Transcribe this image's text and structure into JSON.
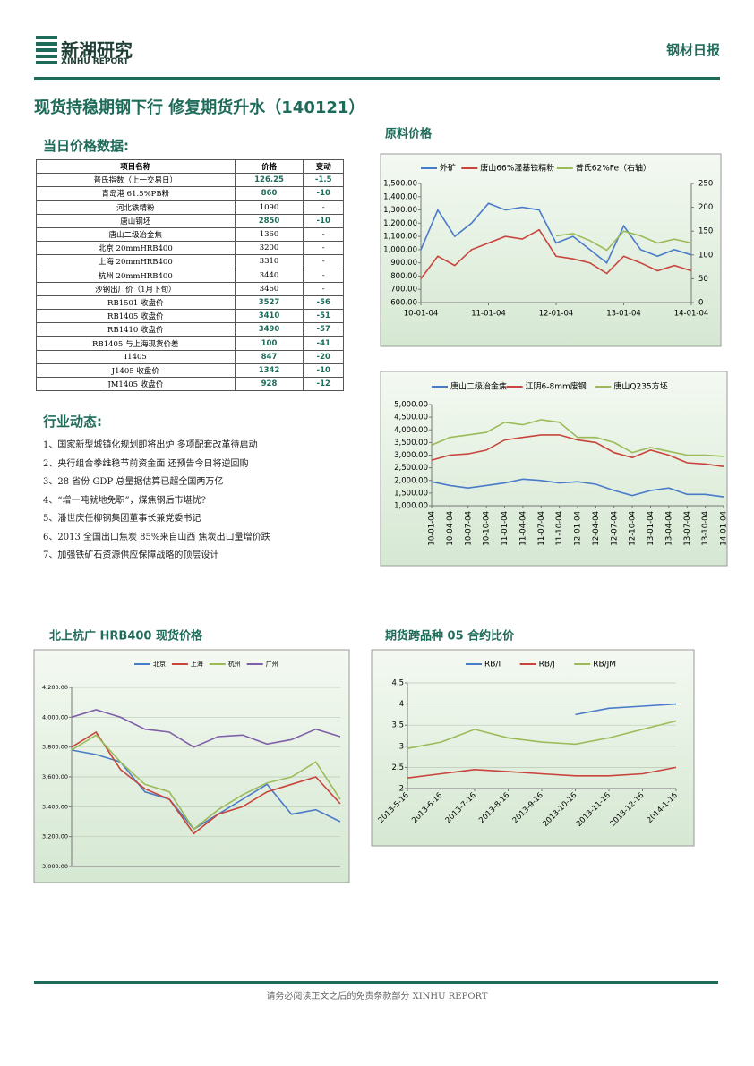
{
  "header": {
    "logo": "新湖研究",
    "logo_sub": "XINHU REPORT",
    "report_type": "钢材日报"
  },
  "title": "现货持稳期钢下行 修复期货升水（140121）",
  "price_section": "当日价格数据:",
  "table": {
    "header": [
      "项目名称",
      "价格",
      "变动"
    ],
    "rows": [
      [
        "普氏指数（上一交易日）",
        "126.25",
        "-1.5"
      ],
      [
        "青岛港 61.5%PB粉",
        "860",
        "-10"
      ],
      [
        "河北铁精粉",
        "1090",
        "-"
      ],
      [
        "唐山钢坯",
        "2850",
        "-10"
      ],
      [
        "唐山二级冶金焦",
        "1360",
        "-"
      ],
      [
        "北京 20mmHRB400",
        "3200",
        "-"
      ],
      [
        "上海 20mmHRB400",
        "3310",
        "-"
      ],
      [
        "杭州 20mmHRB400",
        "3440",
        "-"
      ],
      [
        "沙钢出厂价（1月下旬）",
        "3460",
        "-"
      ],
      [
        "RB1501 收盘价",
        "3527",
        "-56"
      ],
      [
        "RB1405 收盘价",
        "3410",
        "-51"
      ],
      [
        "RB1410 收盘价",
        "3490",
        "-57"
      ],
      [
        "RB1405 与上海现货价差",
        "100",
        "-41"
      ],
      [
        "I1405",
        "847",
        "-20"
      ],
      [
        "J1405 收盘价",
        "1342",
        "-10"
      ],
      [
        "JM1405 收盘价",
        "928",
        "-12"
      ]
    ]
  },
  "news_section": "行业动态:",
  "news": [
    "1、国家新型城镇化规划即将出炉 多项配套改革待启动",
    "2、央行组合拳维稳节前资金面 还预告今日将逆回购",
    "3、28 省份 GDP 总量据估算已超全国两万亿",
    "4、“增一吨就地免职”，煤焦钢后市堪忧?",
    "5、潘世庆任柳钢集团董事长兼党委书记",
    "6、2013 全国出口焦炭 85%来自山西 焦炭出口量增价跌",
    "7、加强铁矿石资源供应保障战略的顶层设计"
  ],
  "footer": "请务必阅读正文之后的免责条款部分 XINHU REPORT",
  "chart_data": [
    {
      "type": "line",
      "title": "原料价格",
      "categories": [
        "10-01-04",
        null,
        null,
        null,
        "11-01-04",
        null,
        null,
        null,
        "12-01-04",
        null,
        null,
        null,
        "13-01-04",
        null,
        null,
        null,
        "14-01-04"
      ],
      "series": [
        {
          "name": "外矿",
          "color": "#4a7bc8",
          "values": [
            1000,
            1300,
            1100,
            1200,
            1350,
            1300,
            1320,
            1300,
            1050,
            1100,
            1000,
            900,
            1180,
            1000,
            950,
            1000,
            960
          ]
        },
        {
          "name": "唐山66%湿基铁精粉",
          "color": "#c8443c",
          "values": [
            780,
            950,
            880,
            1000,
            1050,
            1100,
            1080,
            1150,
            950,
            930,
            900,
            820,
            950,
            900,
            840,
            880,
            840
          ]
        },
        {
          "name": "普氏62%Fe（右轴）",
          "color": "#9bbb59",
          "axis": "y2",
          "values": [
            null,
            null,
            null,
            null,
            null,
            null,
            null,
            null,
            140,
            145,
            130,
            110,
            150,
            140,
            125,
            133,
            125
          ]
        }
      ],
      "ylim": [
        600,
        1500
      ],
      "yticks": [
        {
          "value": 600,
          "label": "600.00"
        },
        {
          "value": 700,
          "label": "700.00"
        },
        {
          "value": 800,
          "label": "800.00"
        },
        {
          "value": 900,
          "label": "900.00"
        },
        {
          "value": 1000,
          "label": "1,000.00"
        },
        {
          "value": 1100,
          "label": "1,100.00"
        },
        {
          "value": 1200,
          "label": "1,200.00"
        },
        {
          "value": 1300,
          "label": "1,300.00"
        },
        {
          "value": 1400,
          "label": "1,400.00"
        },
        {
          "value": 1500,
          "label": "1,500.00"
        }
      ],
      "y2lim": [
        0,
        250
      ],
      "y2ticks": [
        0,
        50,
        100,
        150,
        200,
        250
      ],
      "grid": false
    },
    {
      "type": "line",
      "categories": [
        "10-01-04",
        "10-04-04",
        "10-07-04",
        "10-10-04",
        "11-01-04",
        "11-04-04",
        "11-07-04",
        "11-10-04",
        "12-01-04",
        "12-04-04",
        "12-07-04",
        "12-10-04",
        "13-01-04",
        "13-04-04",
        "13-07-04",
        "13-10-04",
        "14-01-04"
      ],
      "series": [
        {
          "name": "唐山二级冶金焦",
          "color": "#4a7bc8",
          "values": [
            1950,
            1800,
            1700,
            1800,
            1900,
            2050,
            2000,
            1900,
            1950,
            1850,
            1600,
            1400,
            1600,
            1700,
            1450,
            1450,
            1350
          ]
        },
        {
          "name": "江阴6-8mm废钢",
          "color": "#c8443c",
          "values": [
            2800,
            3000,
            3050,
            3200,
            3600,
            3700,
            3800,
            3800,
            3600,
            3500,
            3100,
            2900,
            3200,
            3000,
            2700,
            2650,
            2550
          ]
        },
        {
          "name": "唐山Q235方坯",
          "color": "#9bbb59",
          "values": [
            3400,
            3700,
            3800,
            3900,
            4300,
            4200,
            4400,
            4300,
            3700,
            3700,
            3500,
            3100,
            3300,
            3150,
            3000,
            3000,
            2950
          ]
        }
      ],
      "ylim": [
        1000,
        5000
      ],
      "yticks": [
        {
          "value": 1000,
          "label": "1,000.00"
        },
        {
          "value": 1500,
          "label": "1,500.00"
        },
        {
          "value": 2000,
          "label": "2,000.00"
        },
        {
          "value": 2500,
          "label": "2,500.00"
        },
        {
          "value": 3000,
          "label": "3,000.00"
        },
        {
          "value": 3500,
          "label": "3,500.00"
        },
        {
          "value": 4000,
          "label": "4,000.00"
        },
        {
          "value": 4500,
          "label": "4,500.00"
        },
        {
          "value": 5000,
          "label": "5,000.00"
        }
      ],
      "grid": false
    },
    {
      "type": "line",
      "title": "北上杭广 HRB400 现货价格",
      "categories": [
        null,
        null,
        null,
        null,
        null,
        null,
        null,
        null,
        null,
        null,
        null,
        null
      ],
      "series": [
        {
          "name": "北京",
          "color": "#4a7bc8",
          "values": [
            3780,
            3750,
            3700,
            3500,
            3450,
            3250,
            3350,
            3450,
            3550,
            3350,
            3380,
            3300
          ]
        },
        {
          "name": "上海",
          "color": "#c8443c",
          "values": [
            3800,
            3900,
            3650,
            3520,
            3450,
            3220,
            3350,
            3400,
            3500,
            3550,
            3600,
            3420
          ]
        },
        {
          "name": "杭州",
          "color": "#9bbb59",
          "values": [
            3780,
            3880,
            3700,
            3550,
            3500,
            3250,
            3380,
            3480,
            3560,
            3600,
            3700,
            3450
          ]
        },
        {
          "name": "广州",
          "color": "#7e5fa8",
          "values": [
            4000,
            4050,
            4000,
            3920,
            3900,
            3800,
            3870,
            3880,
            3820,
            3850,
            3920,
            3870
          ]
        }
      ],
      "ylim": [
        3000,
        4200
      ],
      "yticks": [
        {
          "value": 3000,
          "label": "3,000.00"
        },
        {
          "value": 3200,
          "label": "3,200.00"
        },
        {
          "value": 3400,
          "label": "3,400.00"
        },
        {
          "value": 3600,
          "label": "3,600.00"
        },
        {
          "value": 3800,
          "label": "3,800.00"
        },
        {
          "value": 4000,
          "label": "4,000.00"
        },
        {
          "value": 4200,
          "label": "4,200.00"
        }
      ],
      "grid": true
    },
    {
      "type": "line",
      "title": "期货跨品种 05 合约比价",
      "categories": [
        "2013-5-16",
        "2013-6-16",
        "2013-7-16",
        "2013-8-16",
        "2013-9-16",
        "2013-10-16",
        "2013-11-16",
        "2013-12-16",
        "2014-1-16"
      ],
      "series": [
        {
          "name": "RB/I",
          "color": "#4a7bc8",
          "values": [
            null,
            null,
            null,
            null,
            null,
            3.75,
            3.9,
            3.95,
            4.0
          ]
        },
        {
          "name": "RB/J",
          "color": "#c8443c",
          "values": [
            2.25,
            2.35,
            2.45,
            2.4,
            2.35,
            2.3,
            2.3,
            2.35,
            2.5
          ]
        },
        {
          "name": "RB/JM",
          "color": "#9bbb59",
          "values": [
            2.95,
            3.1,
            3.4,
            3.2,
            3.1,
            3.05,
            3.2,
            3.4,
            3.6
          ]
        }
      ],
      "ylim": [
        2,
        4.5
      ],
      "yticks": [
        2,
        2.5,
        3,
        3.5,
        4,
        4.5
      ],
      "grid": true
    }
  ]
}
